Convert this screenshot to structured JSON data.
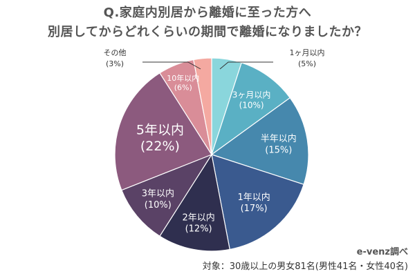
{
  "title_line1": "Q.家庭内別居から離婚に至った方へ",
  "title_line2": "別居してからどれくらいの期間で離婚になりましたか？",
  "source": "e-venz調べ",
  "note": "対象：30歳以上の男女81名(男性41名・女性40名)",
  "chart_data": {
    "type": "pie",
    "title": "Q.家庭内別居から離婚に至った方へ 別居してからどれくらいの期間で離婚になりましたか？",
    "slices": [
      {
        "label": "1ヶ月以内",
        "pct_label": "(5%)",
        "value": 5,
        "color": "#8ad6dc"
      },
      {
        "label": "3ヶ月以内",
        "pct_label": "(10%)",
        "value": 10,
        "color": "#5ab0c4"
      },
      {
        "label": "半年以内",
        "pct_label": "(15%)",
        "value": 15,
        "color": "#4688ad"
      },
      {
        "label": "1年以内",
        "pct_label": "(17%)",
        "value": 17,
        "color": "#3a5a8f"
      },
      {
        "label": "2年以内",
        "pct_label": "(12%)",
        "value": 12,
        "color": "#2f2f4f"
      },
      {
        "label": "3年以内",
        "pct_label": "(10%)",
        "value": 10,
        "color": "#5a4266"
      },
      {
        "label": "5年以内",
        "pct_label": "(22%)",
        "value": 22,
        "color": "#8c5a7e"
      },
      {
        "label": "10年以内",
        "pct_label": "(6%)",
        "value": 6,
        "color": "#d98d98"
      },
      {
        "label": "その他",
        "pct_label": "(3%)",
        "value": 3,
        "color": "#f4a9a1"
      }
    ]
  }
}
